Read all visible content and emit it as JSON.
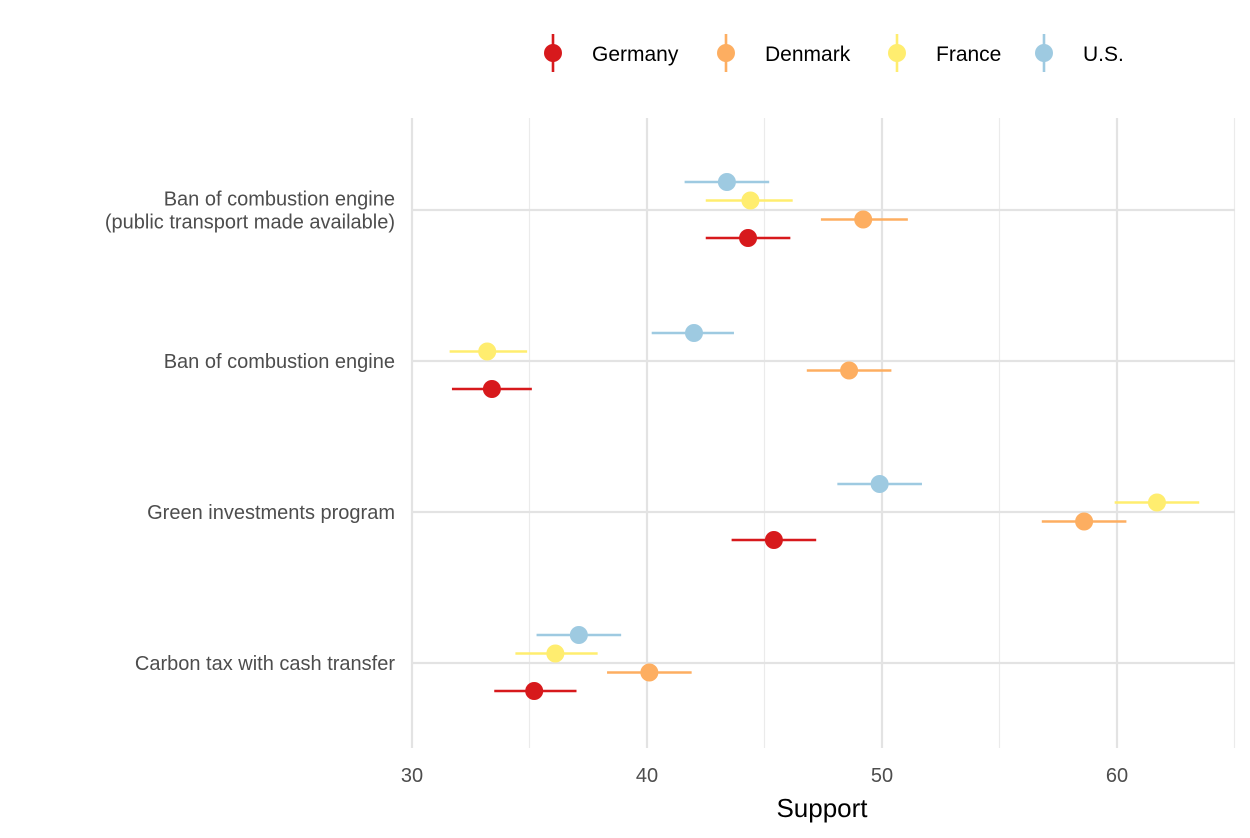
{
  "chart_data": {
    "type": "scatter",
    "xlabel": "Support",
    "ylabel": "",
    "xlim": [
      30,
      65
    ],
    "x_ticks": [
      30,
      40,
      50,
      60
    ],
    "grid": true,
    "legend_position": "top",
    "categories": [
      [
        "Ban of combustion engine",
        "(public transport made available)"
      ],
      [
        "Ban of combustion engine"
      ],
      [
        "Green investments program"
      ],
      [
        "Carbon tax with cash transfer"
      ]
    ],
    "series": [
      {
        "name": "Germany",
        "color": "#d7191c",
        "values": [
          44.3,
          33.4,
          45.4,
          35.2
        ],
        "ci_low": [
          42.5,
          31.7,
          43.6,
          33.5
        ],
        "ci_high": [
          46.1,
          35.1,
          47.2,
          37.0
        ]
      },
      {
        "name": "Denmark",
        "color": "#fdae61",
        "values": [
          49.2,
          48.6,
          58.6,
          40.1
        ],
        "ci_low": [
          47.4,
          46.8,
          56.8,
          38.3
        ],
        "ci_high": [
          51.1,
          50.4,
          60.4,
          41.9
        ]
      },
      {
        "name": "France",
        "color": "#ffed6f",
        "values": [
          44.4,
          33.2,
          61.7,
          36.1
        ],
        "ci_low": [
          42.5,
          31.6,
          59.9,
          34.4
        ],
        "ci_high": [
          46.2,
          34.9,
          63.5,
          37.9
        ]
      },
      {
        "name": "U.S.",
        "color": "#9ecae1",
        "values": [
          43.4,
          42.0,
          49.9,
          37.1
        ],
        "ci_low": [
          41.6,
          40.2,
          48.1,
          35.3
        ],
        "ci_high": [
          45.2,
          43.7,
          51.7,
          38.9
        ]
      }
    ]
  }
}
